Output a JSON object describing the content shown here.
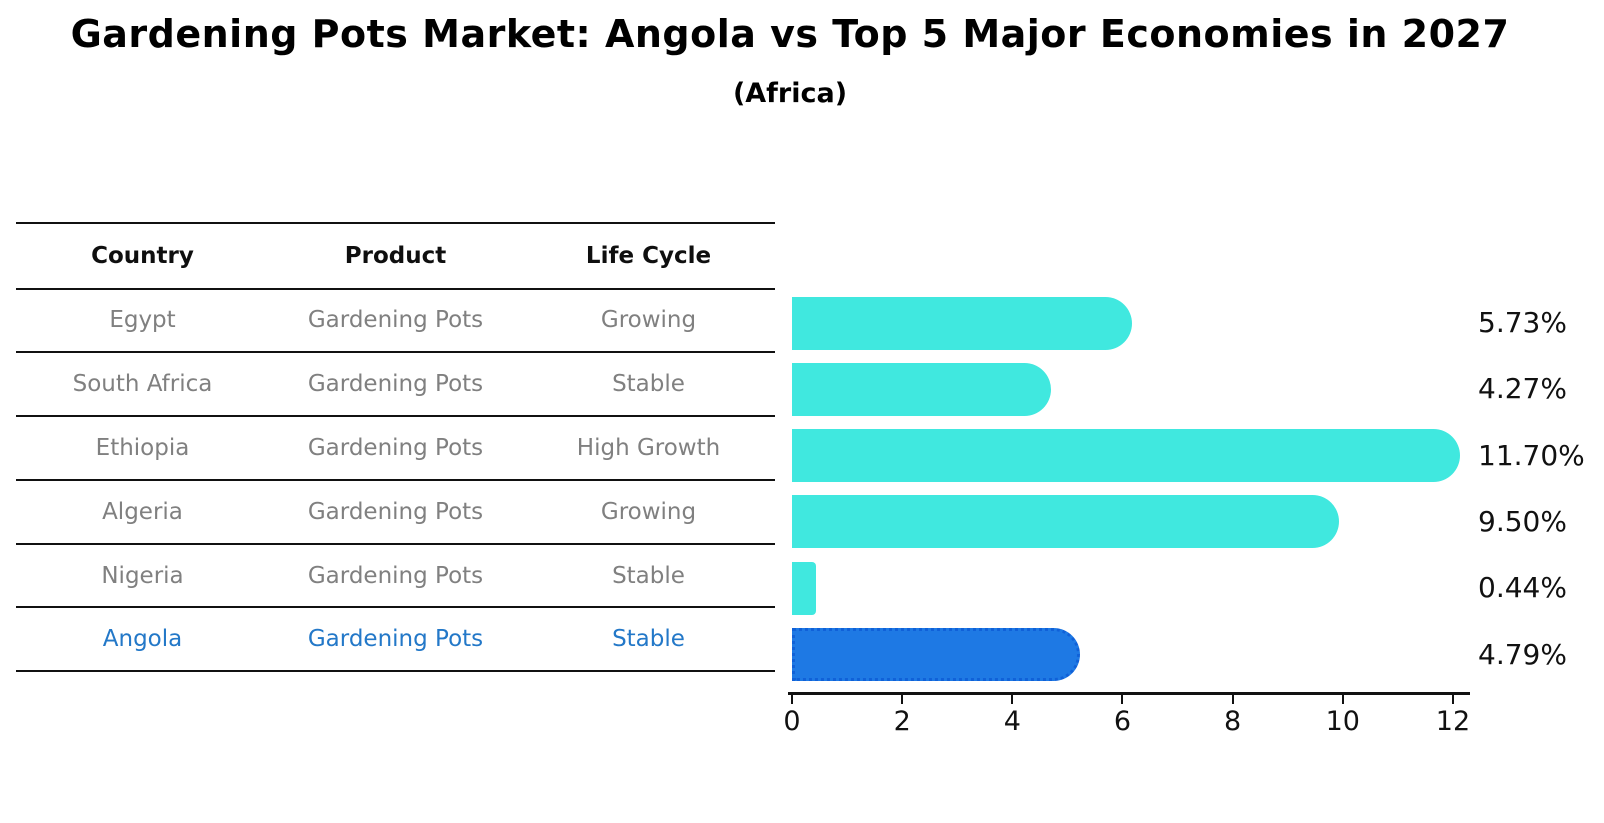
{
  "title": "Gardening Pots Market: Angola vs Top 5 Major Economies in 2027",
  "subtitle": "(Africa)",
  "table": {
    "columns": [
      "Country",
      "Product",
      "Life Cycle"
    ],
    "rows": [
      {
        "country": "Egypt",
        "product": "Gardening Pots",
        "life_cycle": "Growing",
        "highlight": false
      },
      {
        "country": "South Africa",
        "product": "Gardening Pots",
        "life_cycle": "Stable",
        "highlight": false
      },
      {
        "country": "Ethiopia",
        "product": "Gardening Pots",
        "life_cycle": "High Growth",
        "highlight": false
      },
      {
        "country": "Algeria",
        "product": "Gardening Pots",
        "life_cycle": "Growing",
        "highlight": false
      },
      {
        "country": "Nigeria",
        "product": "Gardening Pots",
        "life_cycle": "Stable",
        "highlight": false
      },
      {
        "country": "Angola",
        "product": "Gardening Pots",
        "life_cycle": "Stable",
        "highlight": true
      }
    ]
  },
  "chart_data": {
    "type": "bar",
    "orientation": "horizontal",
    "title": "Gardening Pots Market: Angola vs Top 5 Major Economies in 2027 (Africa)",
    "categories": [
      "Egypt",
      "South Africa",
      "Ethiopia",
      "Algeria",
      "Nigeria",
      "Angola"
    ],
    "values": [
      5.73,
      4.27,
      11.7,
      9.5,
      0.44,
      4.79
    ],
    "value_labels": [
      "5.73%",
      "4.27%",
      "11.70%",
      "9.50%",
      "0.44%",
      "4.79%"
    ],
    "x_ticks": [
      "0",
      "2",
      "4",
      "6",
      "8",
      "10",
      "12"
    ],
    "xlim": [
      0,
      12.3
    ],
    "xlabel": "",
    "ylabel": "",
    "grid": "off",
    "legend": "none",
    "bar_color": "#40e8df",
    "highlight_index": 5,
    "highlight_bar_color": "#1e79e4",
    "highlight_border_color": "#1061d8",
    "highlight_text_color": "#2378c8"
  }
}
